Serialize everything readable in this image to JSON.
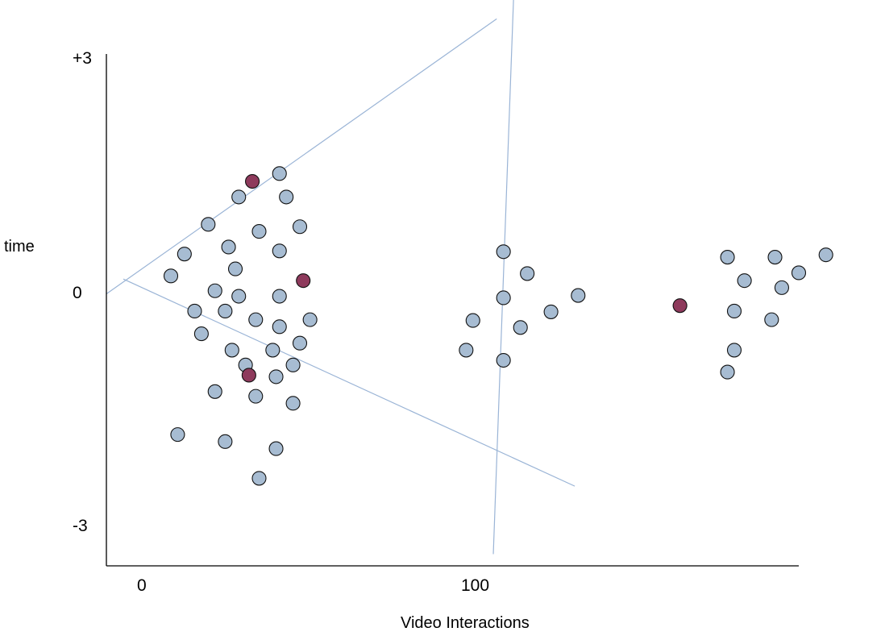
{
  "chart_data": {
    "type": "scatter",
    "title": "",
    "xlabel": "Video Interactions",
    "ylabel": "time",
    "xlim": [
      -11,
      193
    ],
    "ylim": [
      -3.5,
      3.05
    ],
    "xticks": [
      {
        "value": 0,
        "label": "0"
      },
      {
        "value": 100,
        "label": "100"
      }
    ],
    "yticks": [
      {
        "value": 3,
        "label": "+3"
      },
      {
        "value": 0,
        "label": "0"
      },
      {
        "value": -3,
        "label": "-3"
      }
    ],
    "grid": false,
    "colors": {
      "normal": "#a7bcd2",
      "highlight": "#8e3a5c",
      "line": "#9ab4d6",
      "axis": "#000000"
    },
    "series": [
      {
        "name": "points",
        "points": [
          {
            "x": 40,
            "y": 1.52
          },
          {
            "x": 28,
            "y": 1.22
          },
          {
            "x": 42,
            "y": 1.22
          },
          {
            "x": 19,
            "y": 0.87
          },
          {
            "x": 34,
            "y": 0.78
          },
          {
            "x": 46,
            "y": 0.84
          },
          {
            "x": 25,
            "y": 0.58
          },
          {
            "x": 40,
            "y": 0.53
          },
          {
            "x": 12,
            "y": 0.49
          },
          {
            "x": 27,
            "y": 0.3
          },
          {
            "x": 8,
            "y": 0.21
          },
          {
            "x": 21,
            "y": 0.02
          },
          {
            "x": 28,
            "y": -0.05
          },
          {
            "x": 40,
            "y": -0.05
          },
          {
            "x": 15,
            "y": -0.24
          },
          {
            "x": 24,
            "y": -0.24
          },
          {
            "x": 33,
            "y": -0.35
          },
          {
            "x": 49,
            "y": -0.35
          },
          {
            "x": 17,
            "y": -0.53
          },
          {
            "x": 40,
            "y": -0.44
          },
          {
            "x": 46,
            "y": -0.65
          },
          {
            "x": 26,
            "y": -0.74
          },
          {
            "x": 38,
            "y": -0.74
          },
          {
            "x": 30,
            "y": -0.93
          },
          {
            "x": 44,
            "y": -0.93
          },
          {
            "x": 39,
            "y": -1.08
          },
          {
            "x": 21,
            "y": -1.27
          },
          {
            "x": 33,
            "y": -1.33
          },
          {
            "x": 44,
            "y": -1.42
          },
          {
            "x": 10,
            "y": -1.82
          },
          {
            "x": 24,
            "y": -1.91
          },
          {
            "x": 39,
            "y": -2.0
          },
          {
            "x": 34,
            "y": -2.38
          },
          {
            "x": 106,
            "y": 0.52
          },
          {
            "x": 113,
            "y": 0.24
          },
          {
            "x": 106,
            "y": -0.07
          },
          {
            "x": 128,
            "y": -0.04
          },
          {
            "x": 120,
            "y": -0.25
          },
          {
            "x": 97,
            "y": -0.36
          },
          {
            "x": 111,
            "y": -0.45
          },
          {
            "x": 95,
            "y": -0.74
          },
          {
            "x": 106,
            "y": -0.87
          },
          {
            "x": 172,
            "y": 0.45
          },
          {
            "x": 186,
            "y": 0.45
          },
          {
            "x": 201,
            "y": 0.48
          },
          {
            "x": 177,
            "y": 0.15
          },
          {
            "x": 193,
            "y": 0.25
          },
          {
            "x": 188,
            "y": 0.06
          },
          {
            "x": 174,
            "y": -0.24
          },
          {
            "x": 185,
            "y": -0.35
          },
          {
            "x": 174,
            "y": -0.74
          },
          {
            "x": 172,
            "y": -1.02
          }
        ]
      },
      {
        "name": "highlighted",
        "points": [
          {
            "x": 32,
            "y": 1.42
          },
          {
            "x": 47,
            "y": 0.15
          },
          {
            "x": 31,
            "y": -1.06
          },
          {
            "x": 158,
            "y": -0.17
          }
        ]
      }
    ],
    "lines": [
      {
        "x1": -11,
        "y1": -0.02,
        "x2": 104,
        "y2": 3.5
      },
      {
        "x1": -6,
        "y1": 0.17,
        "x2": 127,
        "y2": -2.48
      },
      {
        "x1": 109,
        "y1": 3.8,
        "x2": 103,
        "y2": -3.35
      }
    ]
  }
}
